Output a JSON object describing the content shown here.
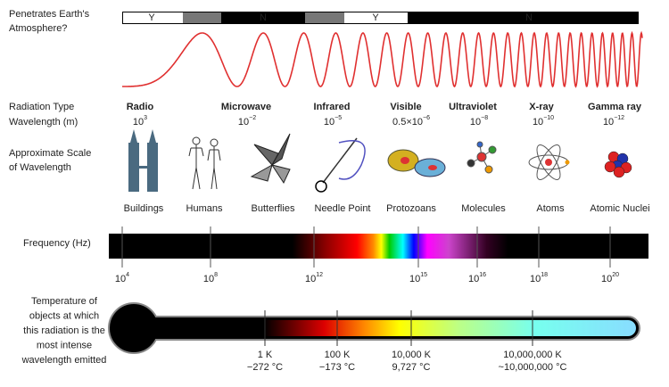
{
  "atmosphere": {
    "label": [
      "Penetrates Earth's",
      "Atmosphere?"
    ],
    "segments": [
      "Y",
      "N",
      "Y",
      "N"
    ]
  },
  "labels": {
    "radiation_type": "Radiation Type",
    "wavelength": "Wavelength (m)",
    "scale": [
      "Approximate Scale",
      "of Wavelength"
    ],
    "frequency": "Frequency (Hz)",
    "temperature": [
      "Temperature of",
      "objects at which",
      "this radiation is the",
      "most intense",
      "wavelength emitted"
    ]
  },
  "radiation": [
    {
      "type": "Radio",
      "base": "10",
      "exp": "3"
    },
    {
      "type": "Microwave",
      "base": "10",
      "exp": "−2"
    },
    {
      "type": "Infrared",
      "base": "10",
      "exp": "−5"
    },
    {
      "type": "Visible",
      "base": "0.5×10",
      "exp": "−6"
    },
    {
      "type": "Ultraviolet",
      "base": "10",
      "exp": "−8"
    },
    {
      "type": "X-ray",
      "base": "10",
      "exp": "−10"
    },
    {
      "type": "Gamma ray",
      "base": "10",
      "exp": "−12"
    }
  ],
  "scale_objects": [
    "Buildings",
    "Humans",
    "Butterflies",
    "Needle Point",
    "Protozoans",
    "Molecules",
    "Atoms",
    "Atomic Nuclei"
  ],
  "frequency_ticks": [
    {
      "base": "10",
      "exp": "4"
    },
    {
      "base": "10",
      "exp": "8"
    },
    {
      "base": "10",
      "exp": "12"
    },
    {
      "base": "10",
      "exp": "15"
    },
    {
      "base": "10",
      "exp": "16"
    },
    {
      "base": "10",
      "exp": "18"
    },
    {
      "base": "10",
      "exp": "20"
    }
  ],
  "temperature_ticks": [
    {
      "kelvin": "1 K",
      "celsius": "−272 °C"
    },
    {
      "kelvin": "100 K",
      "celsius": "−173 °C"
    },
    {
      "kelvin": "10,000 K",
      "celsius": "9,727 °C"
    },
    {
      "kelvin": "10,000,000 K",
      "celsius": "~10,000,000 °C"
    }
  ]
}
